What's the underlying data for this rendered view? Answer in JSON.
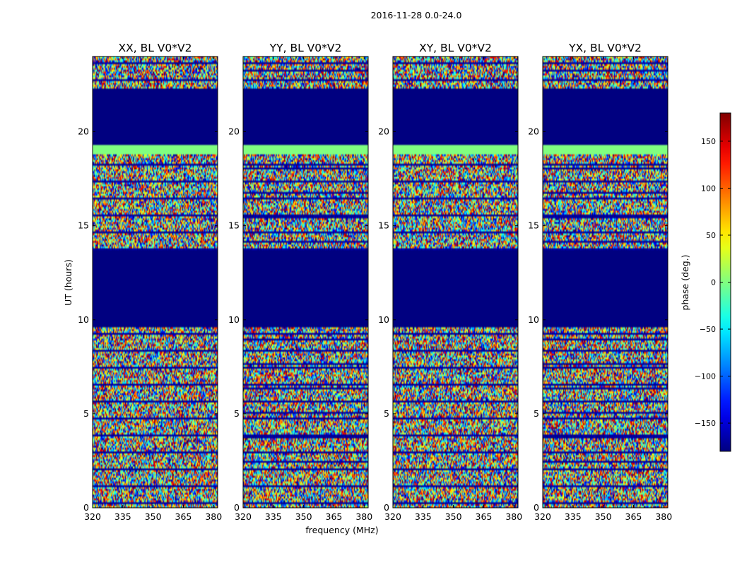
{
  "chart_data": {
    "type": "heatmap",
    "suptitle": "2016-11-28 0.0-24.0",
    "xlabel": "frequency (MHz)",
    "ylabel": "UT (hours)",
    "xlim": [
      320,
      382
    ],
    "ylim": [
      0,
      24
    ],
    "xticks": [
      320,
      335,
      350,
      365,
      380
    ],
    "yticks": [
      0,
      5,
      10,
      15,
      20
    ],
    "colormap": "jet",
    "colorbar": {
      "label": "phase (deg.)",
      "range": [
        -180,
        180
      ],
      "ticks": [
        150,
        100,
        50,
        0,
        -50,
        -100,
        -150
      ],
      "tick_labels": [
        "150",
        "100",
        "50",
        "0",
        "−50",
        "−100",
        "−150"
      ]
    },
    "flagged_intervals_hours": [
      [
        9.6,
        13.7
      ],
      [
        19.3,
        22.3
      ]
    ],
    "constant_phase_bands": [
      {
        "from": 18.8,
        "to": 19.3,
        "phase_deg": 0
      }
    ],
    "panels": [
      {
        "title": "XX, BL V0*V2",
        "polarization": "XX"
      },
      {
        "title": "YY, BL V0*V2",
        "polarization": "YY"
      },
      {
        "title": "XY, BL V0*V2",
        "polarization": "XY"
      },
      {
        "title": "YX, BL V0*V2",
        "polarization": "YX"
      }
    ]
  }
}
